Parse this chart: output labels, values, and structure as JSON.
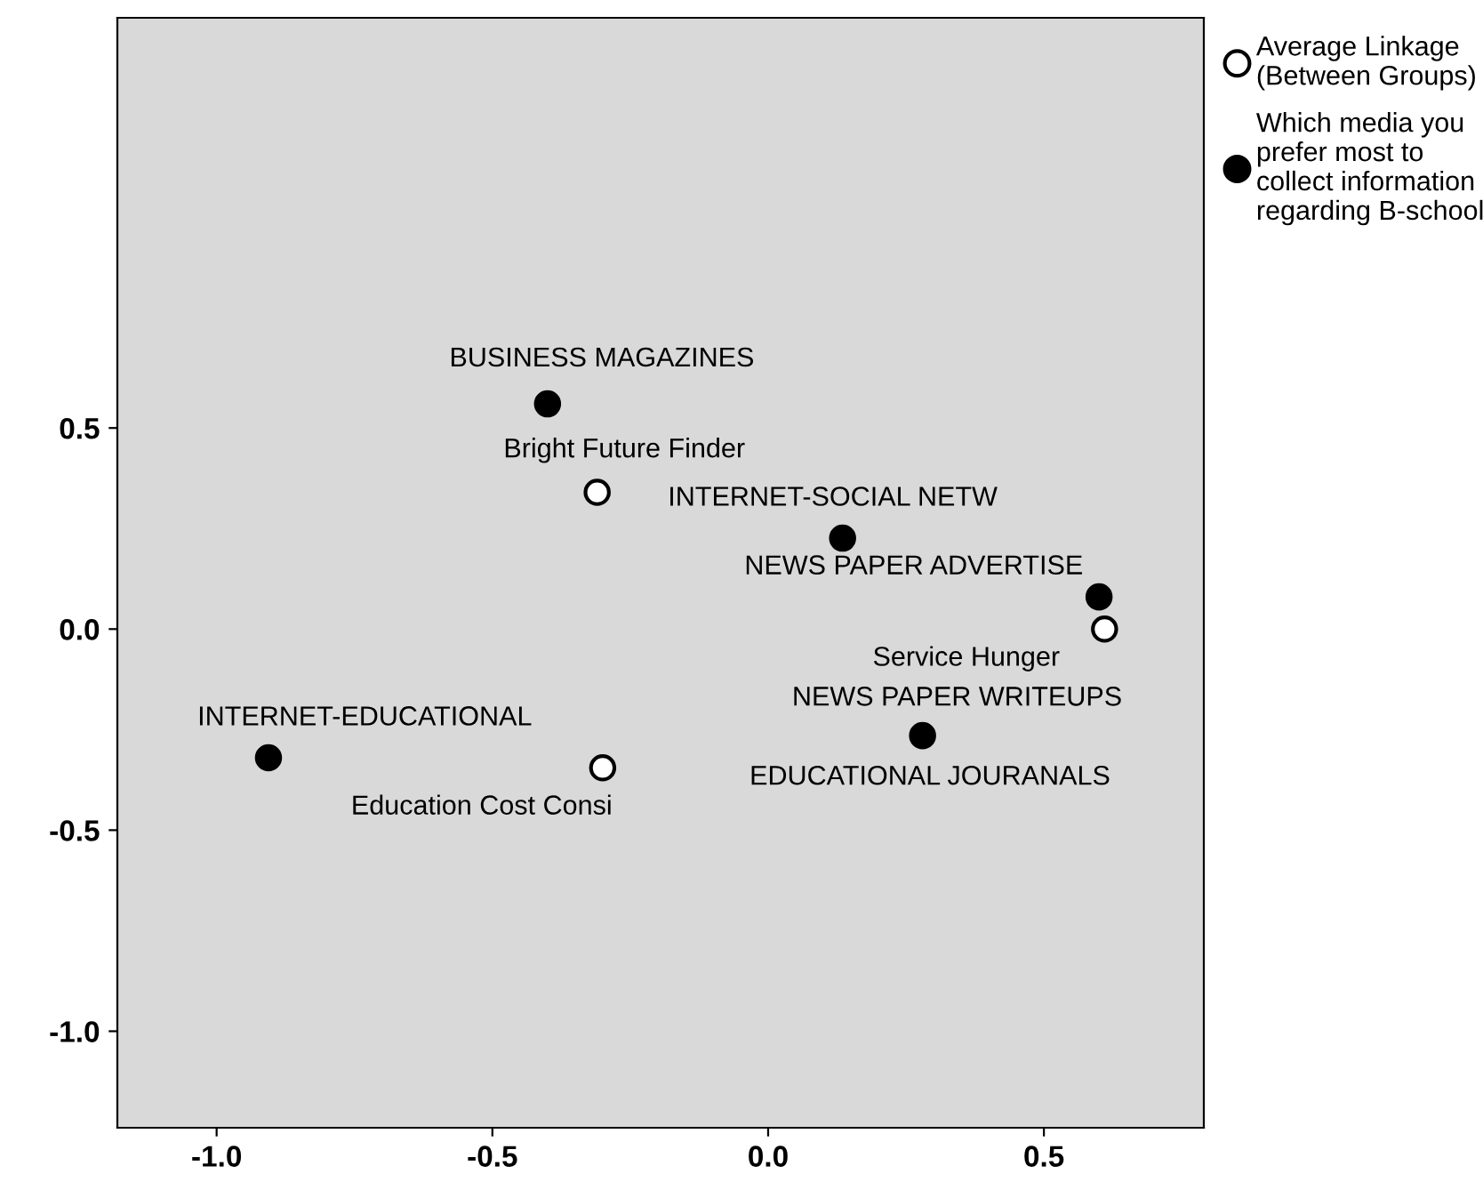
{
  "chart_data": {
    "type": "scatter",
    "xlim": [
      -1.18,
      0.79
    ],
    "ylim": [
      -1.24,
      1.52
    ],
    "xticks": [
      {
        "value": -1.0,
        "label": "-1.0"
      },
      {
        "value": -0.5,
        "label": "-0.5"
      },
      {
        "value": 0.0,
        "label": "0.0"
      },
      {
        "value": 0.5,
        "label": "0.5"
      }
    ],
    "yticks": [
      {
        "value": -1.0,
        "label": "-1.0"
      },
      {
        "value": -0.5,
        "label": "-0.5"
      },
      {
        "value": 0.0,
        "label": "0.0"
      },
      {
        "value": 0.5,
        "label": "0.5"
      }
    ],
    "grid": false,
    "legend": "top right",
    "marker": "circle",
    "series": [
      {
        "name": "Average Linkage\n(Between Groups)",
        "color": "#ffffff",
        "x": [
          -0.31,
          0.61,
          -0.3
        ],
        "values": [
          0.34,
          0.0,
          -0.345
        ]
      },
      {
        "name": "Which media you\nprefer most to\ncollect information\nregarding B-school",
        "color": "#000000",
        "x": [
          -0.4,
          0.135,
          0.6,
          0.28,
          -0.906
        ],
        "values": [
          0.56,
          0.226,
          0.08,
          -0.265,
          -0.32
        ]
      }
    ],
    "annotations": [
      {
        "text": "BUSINESS MAGAZINES",
        "x": -0.4,
        "y": 0.56
      },
      {
        "text": "Bright Future Finder",
        "x": -0.31,
        "y": 0.34
      },
      {
        "text": "INTERNET-SOCIAL NETW",
        "x": 0.135,
        "y": 0.226
      },
      {
        "text": "NEWS PAPER ADVERTISE",
        "x": 0.6,
        "y": 0.08
      },
      {
        "text": "Service Hunger",
        "x": 0.61,
        "y": 0.0
      },
      {
        "text": "NEWS PAPER WRITEUPS",
        "x": 0.28,
        "y": -0.265
      },
      {
        "text": "EDUCATIONAL JOURANALS",
        "x": 0.28,
        "y": -0.265
      },
      {
        "text": "Education Cost Consi",
        "x": -0.3,
        "y": -0.345
      },
      {
        "text": "INTERNET-EDUCATIONAL",
        "x": -0.906,
        "y": -0.32
      }
    ]
  }
}
